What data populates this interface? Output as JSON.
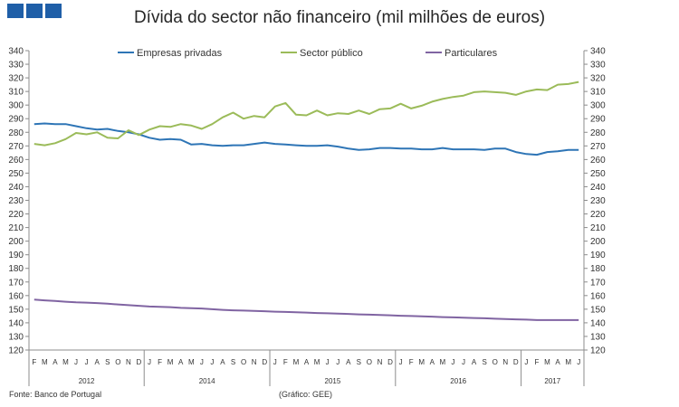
{
  "header": {
    "title": "Dívida do sector não financeiro (mil milhões de euros)"
  },
  "footer": {
    "source": "Fonte: Banco de Portugal",
    "credit": "(Gráfico: GEE)"
  },
  "chart_data": {
    "type": "line",
    "title": "Dívida do sector não financeiro (mil milhões de euros)",
    "ylim": [
      120,
      340
    ],
    "ytick_step": 10,
    "y_axis_sides": [
      "left",
      "right"
    ],
    "grid": false,
    "legend_position": "top",
    "x": [
      "F",
      "M",
      "A",
      "M",
      "J",
      "J",
      "A",
      "S",
      "O",
      "N",
      "D",
      "J",
      "F",
      "M",
      "A",
      "M",
      "J",
      "J",
      "A",
      "S",
      "O",
      "N",
      "D",
      "J",
      "F",
      "M",
      "A",
      "M",
      "J",
      "J",
      "A",
      "S",
      "O",
      "N",
      "D",
      "J",
      "F",
      "M",
      "A",
      "M",
      "J",
      "J",
      "A",
      "S",
      "O",
      "N",
      "D",
      "J",
      "F",
      "M",
      "A",
      "M",
      "J"
    ],
    "year_groups": [
      {
        "label": "2012",
        "count": 11
      },
      {
        "label": "2014",
        "count": 12
      },
      {
        "label": "2015",
        "count": 12
      },
      {
        "label": "2016",
        "count": 12
      },
      {
        "label": "2017",
        "count": 6
      }
    ],
    "series": [
      {
        "name": "Empresas privadas",
        "color": "#2e75b6",
        "values": [
          286,
          286.5,
          286,
          286,
          284.5,
          283,
          282,
          282.5,
          281,
          280,
          278.5,
          276,
          274.5,
          275,
          274.5,
          271,
          271.5,
          270.5,
          270,
          270.5,
          270.5,
          271.5,
          272.5,
          271.5,
          271,
          270.5,
          270,
          270,
          270.5,
          269.5,
          268,
          267,
          267.5,
          268.5,
          268.5,
          268,
          268,
          267.5,
          267.5,
          268.5,
          267.5,
          267.5,
          267.5,
          267,
          268,
          268,
          265.5,
          264,
          263.5,
          265.5,
          266,
          267,
          267
        ]
      },
      {
        "name": "Sector público",
        "color": "#9bbb59",
        "values": [
          271.5,
          270.5,
          272,
          275,
          279.5,
          278.5,
          280,
          276,
          275.5,
          281.5,
          278,
          282,
          284.5,
          284,
          286,
          285,
          282.5,
          286,
          291,
          294.5,
          290,
          292,
          291,
          299,
          301.5,
          293,
          292.5,
          296,
          292.5,
          294,
          293.5,
          296,
          293.5,
          297,
          297.5,
          301,
          297.5,
          299.5,
          302.5,
          304.5,
          306,
          307,
          309.5,
          310,
          309.5,
          309,
          307.5,
          310,
          311.5,
          311,
          315,
          315.5,
          317
        ]
      },
      {
        "name": "Particulares",
        "color": "#8064a2",
        "values": [
          157,
          156.5,
          156,
          155.5,
          155,
          154.8,
          154.5,
          154,
          153.5,
          153,
          152.5,
          152,
          151.8,
          151.5,
          151,
          150.8,
          150.5,
          150,
          149.5,
          149.2,
          149,
          148.8,
          148.5,
          148.2,
          148,
          147.7,
          147.5,
          147.2,
          147,
          146.7,
          146.5,
          146.2,
          146,
          145.7,
          145.5,
          145.2,
          145,
          144.7,
          144.5,
          144.2,
          144,
          143.8,
          143.5,
          143.3,
          143,
          142.8,
          142.5,
          142.3,
          142,
          142,
          142,
          142,
          142
        ]
      }
    ]
  }
}
